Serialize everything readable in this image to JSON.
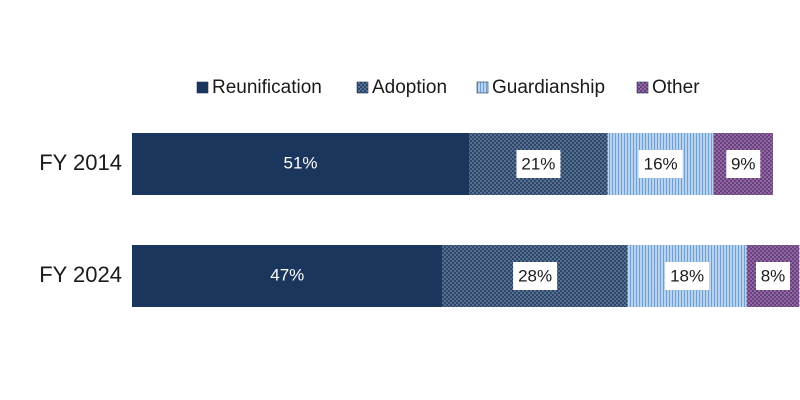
{
  "chart_data": {
    "type": "bar",
    "orientation": "horizontal",
    "stacked": true,
    "title": "",
    "xlabel": "",
    "ylabel": "",
    "xlim": [
      0,
      97
    ],
    "grid": false,
    "legend_position": "top",
    "categories": [
      "FY 2014",
      "FY 2024"
    ],
    "series": [
      {
        "name": "Reunification",
        "values": [
          51,
          47
        ],
        "labels": [
          "51%",
          "47%"
        ],
        "color": "#1b365d",
        "pattern": "solid"
      },
      {
        "name": "Adoption",
        "values": [
          21,
          28
        ],
        "labels": [
          "21%",
          "28%"
        ],
        "color": "#2c4a6e",
        "pattern": "dots"
      },
      {
        "name": "Guardianship",
        "values": [
          16,
          18
        ],
        "labels": [
          "16%",
          "18%"
        ],
        "color": "#a9c7ea",
        "pattern": "vertical-lines"
      },
      {
        "name": "Other",
        "values": [
          9,
          8
        ],
        "labels": [
          "9%",
          "8%"
        ],
        "color": "#6b3f80",
        "pattern": "dots"
      }
    ]
  }
}
